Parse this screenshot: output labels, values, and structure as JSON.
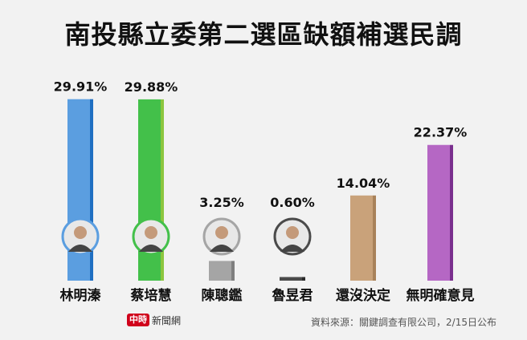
{
  "title": "南投縣立委第二選區缺額補選民調",
  "footer": {
    "source": "資料來源：關鍵調查有限公司，2/15日公布",
    "brand_badge": "中時",
    "brand_name": "新聞網"
  },
  "chart_data": {
    "type": "bar",
    "title": "南投縣立委第二選區缺額補選民調",
    "categories": [
      "林明溱",
      "蔡培慧",
      "陳聰鑑",
      "魯昱君",
      "還沒決定",
      "無明確意見"
    ],
    "values": [
      29.91,
      29.88,
      3.25,
      0.6,
      14.04,
      22.37
    ],
    "value_labels": [
      "29.91%",
      "29.88%",
      "3.25%",
      "0.60%",
      "14.04%",
      "22.37%"
    ],
    "colors": [
      "#5b9ee0",
      "#43c04a",
      "#a5a5a5",
      "#4a4a4a",
      "#c9a27a",
      "#b567c4"
    ],
    "shade_colors": [
      "#1f6fc2",
      "#8cc63f",
      "#7f7f7f",
      "#2b2b2b",
      "#a8825a",
      "#7a2f8e"
    ],
    "has_photo": [
      true,
      true,
      true,
      true,
      false,
      false
    ],
    "ylim": [
      0,
      30
    ],
    "grid": false
  }
}
